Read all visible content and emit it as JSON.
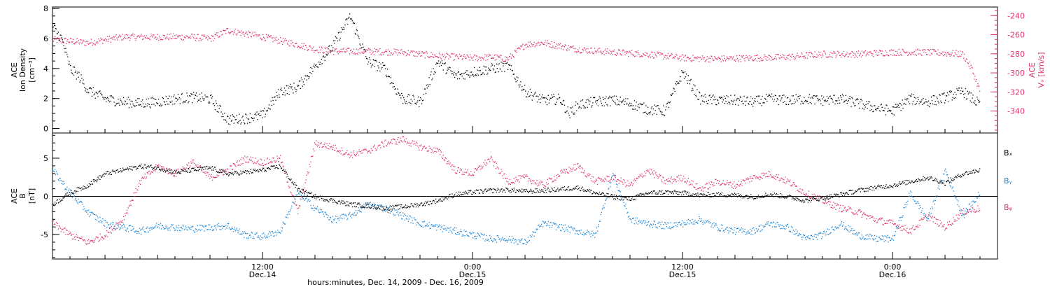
{
  "x_axis": {
    "title": "hours:minutes, Dec. 14, 2009 - Dec. 16, 2009",
    "ticks": [
      {
        "time": "12:00",
        "date": "Dec.14",
        "hour": 12
      },
      {
        "time": "0:00",
        "date": "Dec.15",
        "hour": 24
      },
      {
        "time": "12:00",
        "date": "Dec.15",
        "hour": 36
      },
      {
        "time": "0:00",
        "date": "Dec.16",
        "hour": 48
      }
    ],
    "range_hours": [
      0,
      54
    ],
    "minor_step_hours": 1,
    "labeled_every_hours": 12
  },
  "colors": {
    "black": "#000000",
    "pink": "#e0336a",
    "blue": "#1a86d8"
  },
  "chart_data": [
    {
      "type": "scatter",
      "panel": "top",
      "ylabel_left": [
        "ACE",
        "Ion Density",
        "[cm⁻³]"
      ],
      "ylabel_right": [
        "ACE",
        "Vₓ [km/s]"
      ],
      "ylim_left": [
        -0.3,
        8.1
      ],
      "yticks_left": [
        0,
        2,
        4,
        6,
        8
      ],
      "ylim_right": [
        -363,
        -231
      ],
      "yticks_right": [
        -240,
        -260,
        -280,
        -300,
        -320,
        -340
      ],
      "series": [
        {
          "axis": "left",
          "color": "black",
          "x": [
            0,
            0.5,
            1,
            1.5,
            2,
            3,
            4,
            5,
            6,
            7,
            8,
            9,
            10,
            11,
            12,
            13,
            14,
            15,
            16,
            17,
            18,
            19,
            19.5,
            20,
            21,
            22,
            23,
            24,
            25,
            26,
            27,
            28,
            29,
            29.5,
            30,
            31,
            32,
            33,
            34,
            35,
            36,
            37,
            38,
            39,
            40,
            41,
            42,
            43,
            44,
            45,
            46,
            47,
            48,
            49,
            50,
            51,
            52,
            53
          ],
          "y": [
            6.8,
            6.0,
            4.0,
            3.5,
            2.6,
            2.0,
            1.8,
            1.7,
            1.8,
            2.0,
            2.1,
            2.0,
            0.6,
            0.7,
            0.9,
            2.5,
            2.8,
            4.2,
            5.5,
            7.5,
            4.5,
            4.0,
            2.8,
            2.0,
            1.8,
            4.5,
            3.5,
            3.8,
            4.0,
            4.2,
            2.5,
            1.9,
            2.0,
            1.0,
            1.6,
            1.8,
            1.9,
            1.7,
            1.3,
            1.2,
            3.8,
            2.0,
            1.9,
            1.9,
            1.8,
            2.0,
            1.9,
            2.0,
            1.9,
            2.0,
            1.7,
            1.4,
            1.2,
            2.0,
            1.8,
            2.1,
            2.5,
            1.6
          ]
        },
        {
          "axis": "right",
          "color": "pink",
          "x": [
            0,
            2,
            4,
            6,
            8,
            9,
            10,
            12,
            13,
            14,
            15,
            16,
            18,
            20,
            22,
            24,
            25,
            26,
            27,
            28,
            30,
            32,
            34,
            36,
            38,
            40,
            42,
            44,
            46,
            48,
            50,
            52,
            52.5,
            53
          ],
          "y": [
            -265,
            -268,
            -262,
            -262,
            -262,
            -264,
            -255,
            -262,
            -266,
            -270,
            -275,
            -277,
            -277,
            -278,
            -282,
            -284,
            -283,
            -285,
            -270,
            -268,
            -275,
            -278,
            -280,
            -284,
            -285,
            -284,
            -283,
            -280,
            -280,
            -278,
            -278,
            -280,
            -295,
            -320
          ]
        }
      ]
    },
    {
      "type": "scatter",
      "panel": "bottom",
      "ylabel_left": [
        "ACE",
        "B",
        "[nT]"
      ],
      "ylim": [
        -8.2,
        8.3
      ],
      "yticks": [
        -5,
        0,
        5
      ],
      "zero_line": true,
      "legend": [
        "Bₓ",
        "Bᵧ",
        "Bᵩ"
      ],
      "legend_position": "right",
      "series": [
        {
          "name": "Bₓ",
          "color": "black",
          "x": [
            0,
            1,
            2,
            3,
            4,
            5,
            6,
            7,
            8,
            9,
            10,
            11,
            12,
            13,
            14,
            15,
            16,
            17,
            18,
            19,
            20,
            21,
            22,
            23,
            24,
            25,
            26,
            27,
            28,
            29,
            30,
            31,
            32,
            33,
            34,
            35,
            36,
            37,
            38,
            39,
            40,
            41,
            42,
            43,
            44,
            45,
            46,
            47,
            48,
            49,
            50,
            51,
            52,
            53
          ],
          "y": [
            -1.0,
            0.5,
            1.5,
            3.0,
            3.5,
            4.0,
            3.8,
            3.2,
            3.5,
            3.8,
            3.0,
            3.2,
            3.5,
            4.0,
            1.0,
            0.0,
            -0.5,
            -1.0,
            -1.2,
            -1.5,
            -1.3,
            -1.0,
            -0.5,
            0.3,
            0.6,
            0.8,
            0.9,
            0.7,
            0.8,
            1.0,
            1.2,
            0.5,
            0.0,
            -0.3,
            0.5,
            0.6,
            0.5,
            0.2,
            0.3,
            0.2,
            0.0,
            0.3,
            0.0,
            -0.5,
            -0.2,
            0.3,
            0.8,
            1.2,
            1.5,
            2.0,
            2.5,
            1.8,
            3.0,
            3.5
          ]
        },
        {
          "name": "Bᵧ",
          "color": "blue",
          "x": [
            0,
            1,
            2,
            3,
            4,
            5,
            6,
            7,
            8,
            9,
            10,
            11,
            12,
            13,
            14,
            15,
            16,
            17,
            18,
            19,
            20,
            21,
            22,
            23,
            24,
            25,
            26,
            27,
            28,
            29,
            30,
            31,
            32,
            33,
            34,
            35,
            36,
            37,
            38,
            39,
            40,
            41,
            42,
            43,
            44,
            45,
            46,
            47,
            48,
            49,
            50,
            51,
            52,
            53
          ],
          "y": [
            3.5,
            0.5,
            -2.0,
            -3.5,
            -4.0,
            -4.5,
            -3.8,
            -4.0,
            -4.2,
            -4.0,
            -3.8,
            -5.0,
            -5.2,
            -4.5,
            0.5,
            -1.5,
            -3.0,
            -2.5,
            -1.0,
            -1.5,
            -2.5,
            -3.5,
            -4.0,
            -4.5,
            -5.0,
            -5.5,
            -5.5,
            -6.0,
            -3.5,
            -4.0,
            -4.5,
            -5.0,
            3.0,
            -3.0,
            -3.5,
            -3.8,
            -3.5,
            -3.0,
            -4.0,
            -4.5,
            -4.5,
            -3.5,
            -4.0,
            -5.5,
            -5.0,
            -3.5,
            -5.0,
            -5.5,
            -5.5,
            0.5,
            -3.0,
            3.5,
            -2.5,
            0.5
          ]
        },
        {
          "name": "Bᵩ",
          "color": "pink",
          "x": [
            0,
            1,
            2,
            3,
            4,
            5,
            6,
            7,
            8,
            9,
            10,
            11,
            12,
            13,
            14,
            15,
            16,
            17,
            18,
            19,
            20,
            21,
            22,
            23,
            24,
            25,
            26,
            27,
            28,
            29,
            30,
            31,
            32,
            33,
            34,
            35,
            36,
            37,
            38,
            39,
            40,
            41,
            42,
            43,
            44,
            45,
            46,
            47,
            48,
            49,
            50,
            51,
            52,
            53
          ],
          "y": [
            -3.5,
            -5.0,
            -6.0,
            -5.0,
            -3.0,
            2.0,
            4.0,
            3.0,
            4.5,
            2.5,
            3.5,
            5.0,
            4.5,
            5.0,
            -2.0,
            7.0,
            6.5,
            5.5,
            6.0,
            7.0,
            7.5,
            6.5,
            6.0,
            3.5,
            3.0,
            5.0,
            2.0,
            2.5,
            1.5,
            3.0,
            4.0,
            2.0,
            2.5,
            1.5,
            3.5,
            2.0,
            2.5,
            1.0,
            2.0,
            1.5,
            2.5,
            3.0,
            2.0,
            0.5,
            -0.5,
            -1.5,
            -2.0,
            -3.0,
            -3.5,
            -4.5,
            -2.5,
            -4.0,
            -2.0,
            -1.5
          ]
        }
      ]
    }
  ]
}
